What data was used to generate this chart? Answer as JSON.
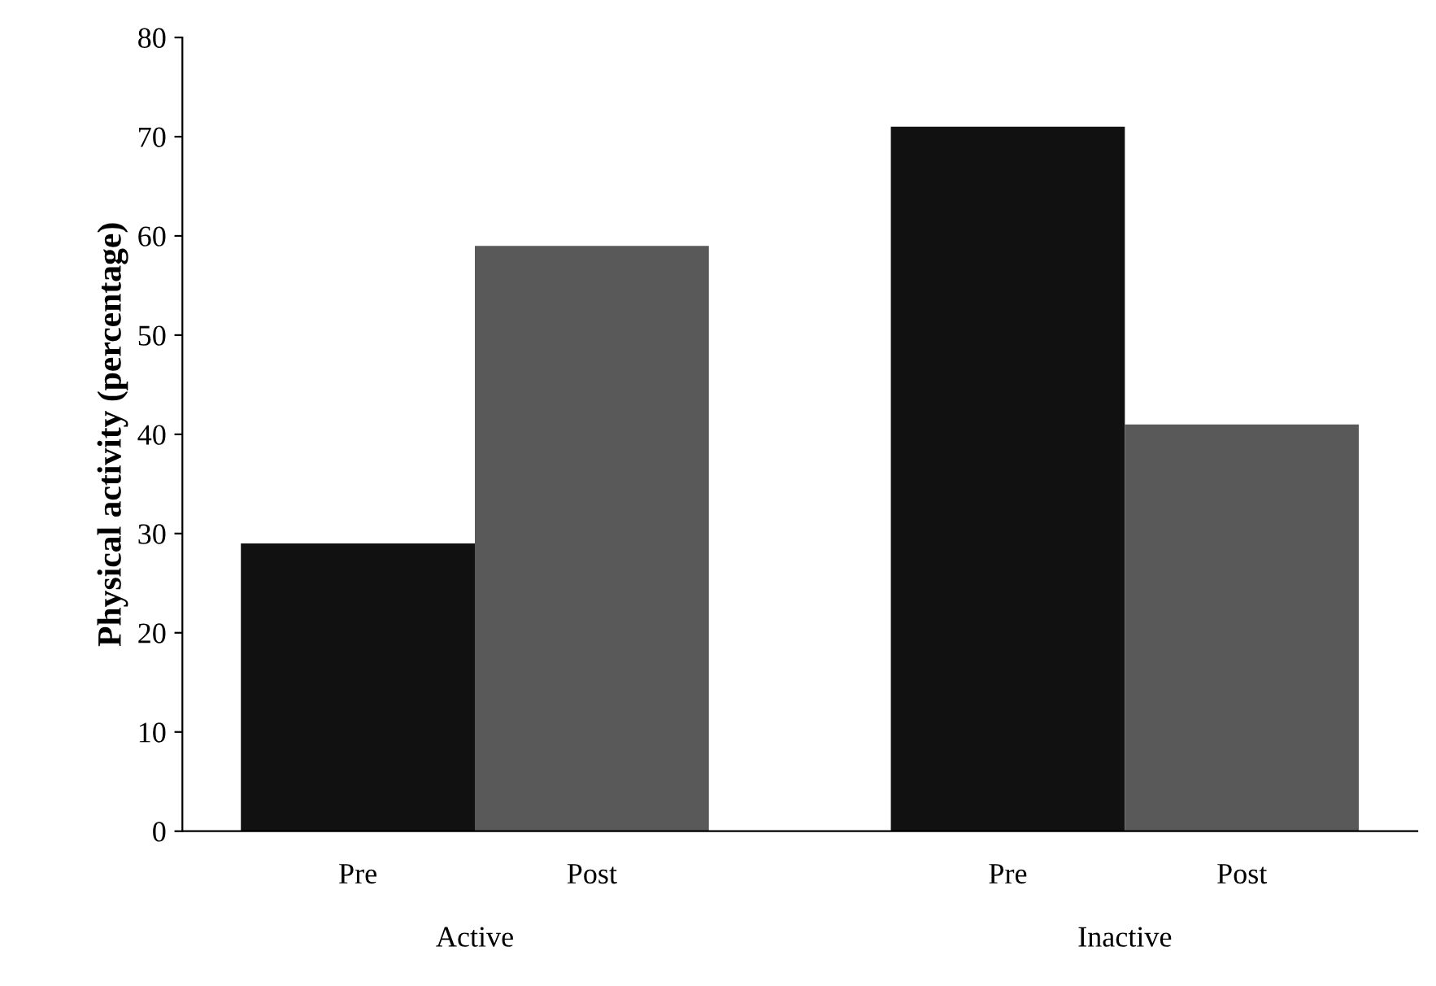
{
  "chart_data": {
    "type": "bar",
    "ylabel": "Physical activity (percentage)",
    "categories": [
      "Active",
      "Inactive"
    ],
    "series": [
      {
        "name": "Pre",
        "color": "#111111",
        "values": [
          29,
          71
        ]
      },
      {
        "name": "Post",
        "color": "#595959",
        "values": [
          59,
          41
        ]
      }
    ],
    "ylim": [
      0,
      80
    ],
    "yticks": [
      0,
      10,
      20,
      30,
      40,
      50,
      60,
      70,
      80
    ],
    "grid": false,
    "legend": false
  }
}
